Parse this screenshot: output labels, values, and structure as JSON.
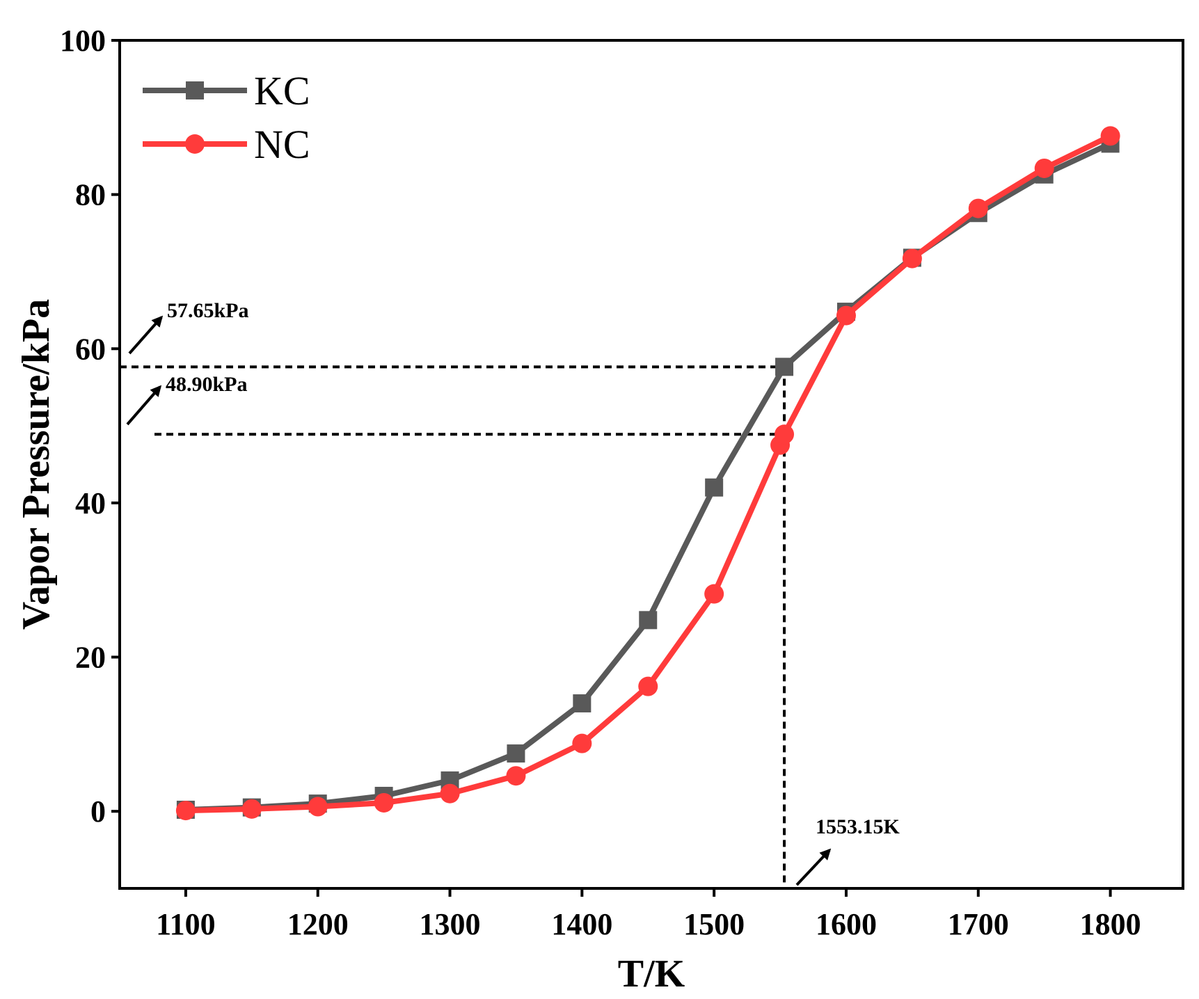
{
  "chart_data": {
    "type": "line",
    "title": "",
    "xlabel": "T/K",
    "ylabel": "Vapor Pressure/kPa",
    "xlim": [
      1050,
      1855
    ],
    "ylim": [
      -10,
      100
    ],
    "x_ticks": [
      1100,
      1200,
      1300,
      1400,
      1500,
      1600,
      1700,
      1800
    ],
    "y_ticks": [
      0,
      20,
      40,
      60,
      80,
      100
    ],
    "grid": false,
    "legend_position": "top-left",
    "series": [
      {
        "name": "KC",
        "color": "#595959",
        "marker": "square",
        "x": [
          1100,
          1150,
          1200,
          1250,
          1300,
          1350,
          1400,
          1450,
          1500,
          1553.15,
          1600,
          1650,
          1700,
          1750,
          1800
        ],
        "y": [
          0.2,
          0.5,
          1.0,
          2.0,
          4.0,
          7.5,
          14.0,
          24.8,
          42.0,
          57.65,
          64.8,
          71.8,
          77.6,
          82.6,
          86.6
        ]
      },
      {
        "name": "NC",
        "color": "#ff3b3b",
        "marker": "circle",
        "x": [
          1100,
          1150,
          1200,
          1250,
          1300,
          1350,
          1400,
          1450,
          1500,
          1550,
          1553.15,
          1600,
          1650,
          1700,
          1750,
          1800
        ],
        "y": [
          0.1,
          0.3,
          0.6,
          1.1,
          2.3,
          4.6,
          8.8,
          16.2,
          28.2,
          47.5,
          48.9,
          64.3,
          71.7,
          78.2,
          83.4,
          87.6
        ]
      }
    ],
    "reference_lines": {
      "x_value": 1553.15,
      "y_values": [
        57.65,
        48.9
      ]
    },
    "annotations": [
      {
        "text": "57.65kPa",
        "target": "y-axis"
      },
      {
        "text": "48.90kPa",
        "target": "y-axis"
      },
      {
        "text": "1553.15K",
        "target": "x-axis"
      }
    ]
  }
}
